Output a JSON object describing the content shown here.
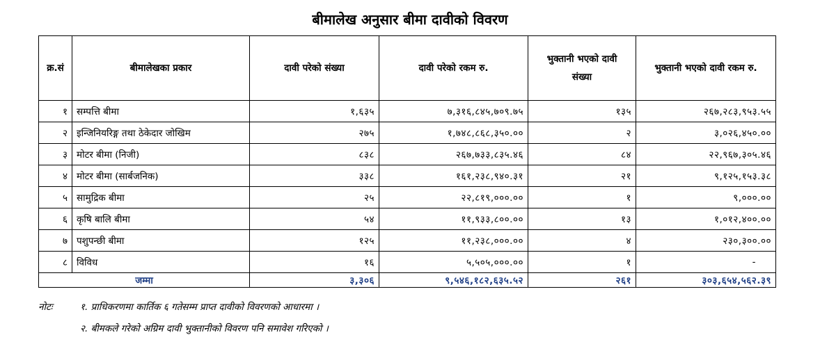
{
  "title": "बीमालेख अनुसार बीमा दावीको विवरण",
  "table": {
    "headers": [
      "क्र.सं",
      "बीमालेखका प्रकार",
      "दावी परेको संख्या",
      "दावी परेको रकम रु.",
      "भुक्तानी भएको दावी संख्या",
      "भुक्तानी भएको दावी रकम रु."
    ],
    "rows": [
      {
        "sn": "१",
        "type": "सम्पत्ति बीमा",
        "claims": "१,६३५",
        "claim_amount": "७,३१६,८४५,७०९.७५",
        "paid_count": "१३५",
        "paid_amount": "२६७,२८३,९५३.५५"
      },
      {
        "sn": "२",
        "type": "इन्जिनियरिङ्ग तथा ठेकेदार जोखिम",
        "claims": "२७५",
        "claim_amount": "१,७४८,८६८,३५०.००",
        "paid_count": "२",
        "paid_amount": "३,०२६,४५०.००"
      },
      {
        "sn": "३",
        "type": "मोटर बीमा (निजी)",
        "claims": "८३८",
        "claim_amount": "२६७,७३३,८३५.४६",
        "paid_count": "८४",
        "paid_amount": "२२,९६७,३०५.४६"
      },
      {
        "sn": "४",
        "type": "मोटर बीमा (सार्बजनिक)",
        "claims": "३३८",
        "claim_amount": "१६१,२३८,९४०.३१",
        "paid_count": "२१",
        "paid_amount": "९,१२५,१५३.३८"
      },
      {
        "sn": "५",
        "type": "सामुद्रिक बीमा",
        "claims": "२५",
        "claim_amount": "२२,८१९,०००.००",
        "paid_count": "१",
        "paid_amount": "९,०००.००"
      },
      {
        "sn": "६",
        "type": "कृषि बालि बीमा",
        "claims": "५४",
        "claim_amount": "११,९३३,८००.००",
        "paid_count": "१३",
        "paid_amount": "१,०१२,४००.००"
      },
      {
        "sn": "७",
        "type": "पशुपन्छी बीमा",
        "claims": "१२५",
        "claim_amount": "११,२३८,०००.००",
        "paid_count": "४",
        "paid_amount": "२३०,३००.००"
      },
      {
        "sn": "८",
        "type": "विविध",
        "claims": "१६",
        "claim_amount": "५,५०५,०००.००",
        "paid_count": "१",
        "paid_amount": "-"
      }
    ],
    "total": {
      "label": "जम्मा",
      "claims": "३,३०६",
      "claim_amount": "९,५४६,१८२,६३५.५२",
      "paid_count": "२६१",
      "paid_amount": "३०३,६५४,५६२.३९"
    }
  },
  "notes": {
    "label": "नोटः",
    "line1": "१. प्राधिकरणमा कार्तिक ६ गतेसम्म प्राप्त दावीको विवरणको आधारमा ।",
    "line2": "२. बीमकले गरेको अग्रिम दावी भुक्तानीको विवरण पनि समावेश गरिएको ।"
  },
  "colors": {
    "total_text": "#1f3f86"
  }
}
